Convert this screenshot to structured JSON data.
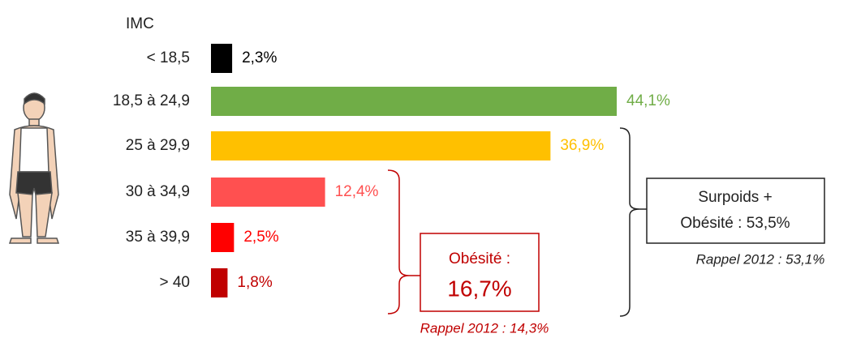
{
  "chart_data": {
    "type": "bar",
    "orientation": "horizontal",
    "axis_title": "IMC",
    "categories": [
      "< 18,5",
      "18,5 à 24,9",
      "25 à 29,9",
      "30 à 34,9",
      "35 à 39,9",
      "> 40"
    ],
    "values": [
      2.3,
      44.1,
      36.9,
      12.4,
      2.5,
      1.8
    ],
    "value_labels": [
      "2,3%",
      "44,1%",
      "36,9%",
      "12,4%",
      "2,5%",
      "1,8%"
    ],
    "colors": [
      "#000000",
      "#70ad47",
      "#ffc000",
      "#ff5050",
      "#ff0000",
      "#c00000"
    ],
    "annotations": [
      "Surpoids +",
      "Obésité : 53,5%",
      "Rappel 2012 : 53,1%",
      "Obésité :",
      "16,7%",
      "Rappel 2012 : 14,3%"
    ]
  }
}
